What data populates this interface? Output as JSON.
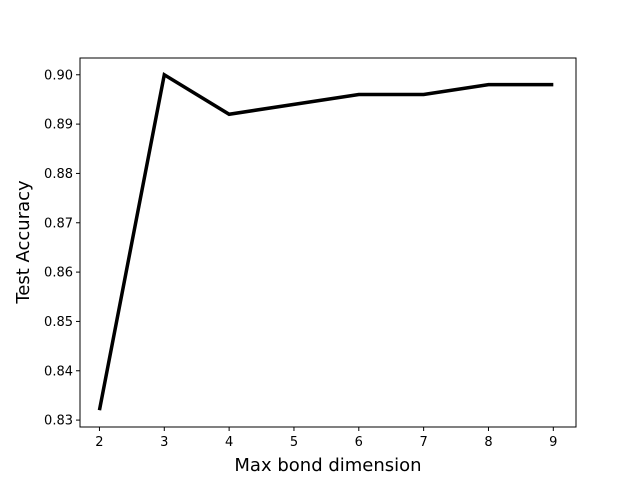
{
  "chart_data": {
    "type": "line",
    "title": "",
    "xlabel": "Max bond dimension",
    "ylabel": "Test Accuracy",
    "x": [
      2,
      3,
      4,
      5,
      6,
      7,
      8,
      9
    ],
    "series": [
      {
        "values": [
          0.832,
          0.9,
          0.892,
          0.894,
          0.896,
          0.896,
          0.898,
          0.898
        ]
      }
    ],
    "xlim": [
      1.7,
      9.35
    ],
    "ylim": [
      0.8286,
      0.9034
    ],
    "xticks": [
      2,
      3,
      4,
      5,
      6,
      7,
      8,
      9
    ],
    "xtick_labels": [
      "2",
      "3",
      "4",
      "5",
      "6",
      "7",
      "8",
      "9"
    ],
    "yticks": [
      0.83,
      0.84,
      0.85,
      0.86,
      0.87,
      0.88,
      0.89,
      0.9
    ],
    "ytick_labels": [
      "0.83",
      "0.84",
      "0.85",
      "0.86",
      "0.87",
      "0.88",
      "0.89",
      "0.90"
    ],
    "grid": false,
    "legend": "none",
    "line_color": "#000000"
  }
}
